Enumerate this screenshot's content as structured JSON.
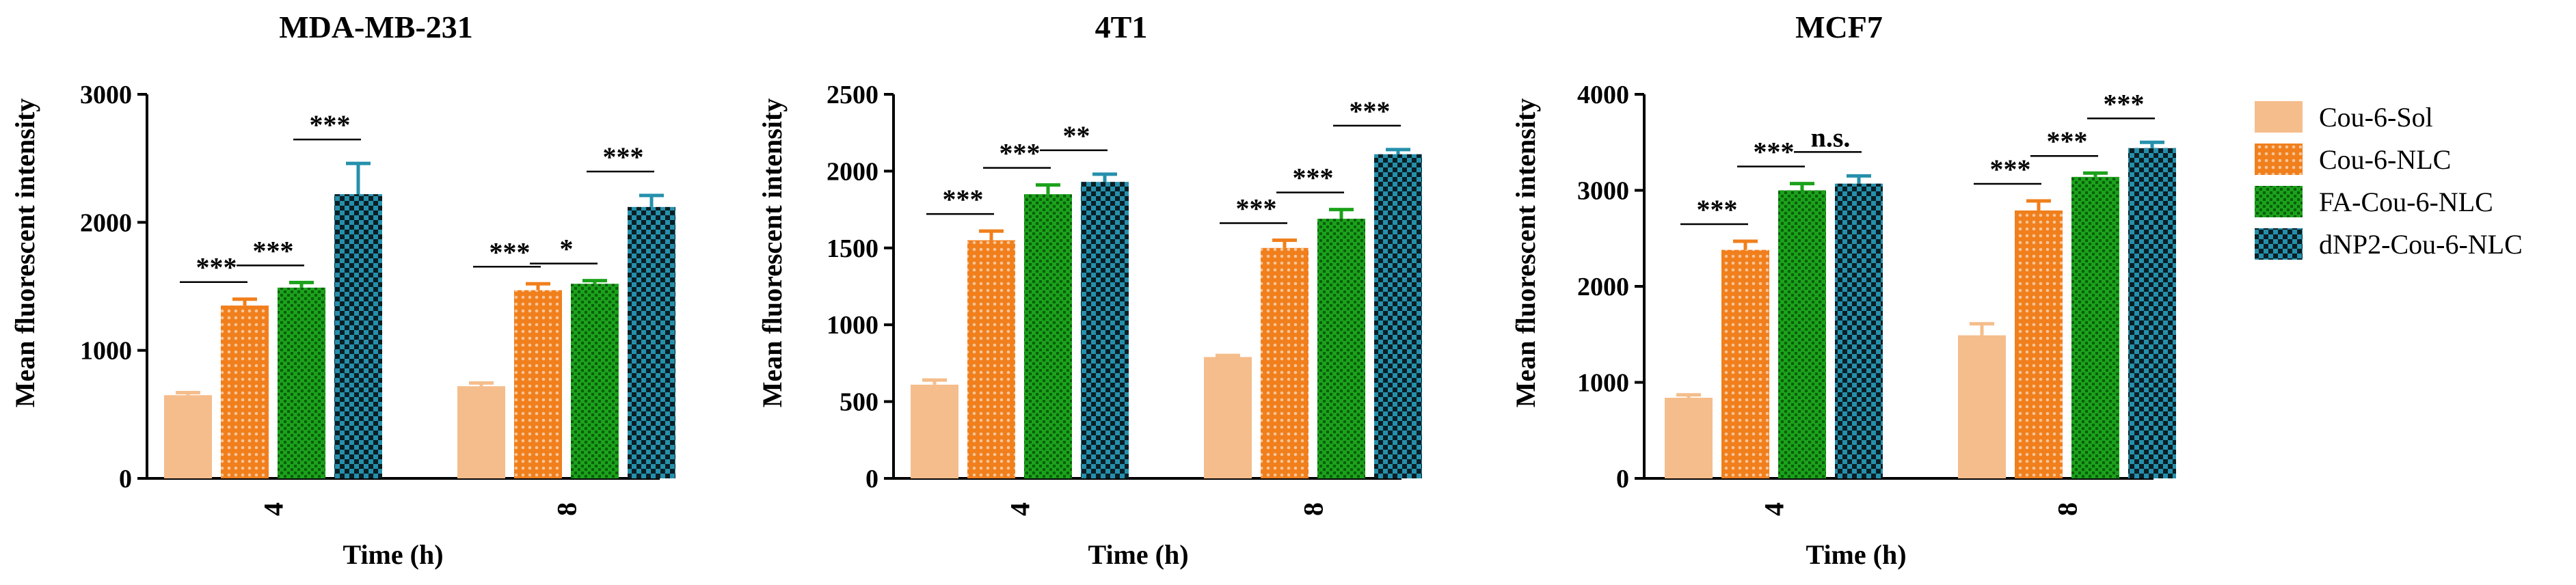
{
  "chart_data": [
    {
      "type": "bar",
      "title": "MDA-MB-231",
      "xlabel": "Time (h)",
      "ylabel": "Mean fluorescent intensity",
      "ylim": [
        0,
        3000
      ],
      "yticks": [
        0,
        1000,
        2000,
        3000
      ],
      "categories": [
        "4",
        "8"
      ],
      "series": [
        {
          "name": "Cou-6-Sol",
          "values": [
            650,
            720
          ],
          "errors": [
            20,
            25
          ]
        },
        {
          "name": "Cou-6-NLC",
          "values": [
            1350,
            1470
          ],
          "errors": [
            50,
            50
          ]
        },
        {
          "name": "FA-Cou-6-NLC",
          "values": [
            1490,
            1520
          ],
          "errors": [
            40,
            25
          ]
        },
        {
          "name": "dNP2-Cou-6-NLC",
          "values": [
            2220,
            2120
          ],
          "errors": [
            240,
            90
          ]
        }
      ],
      "significance": [
        {
          "category": "4",
          "pair": [
            0,
            1
          ],
          "label": "***"
        },
        {
          "category": "4",
          "pair": [
            1,
            2
          ],
          "label": "***"
        },
        {
          "category": "4",
          "pair": [
            2,
            3
          ],
          "label": "***"
        },
        {
          "category": "8",
          "pair": [
            0,
            1
          ],
          "label": "***"
        },
        {
          "category": "8",
          "pair": [
            1,
            2
          ],
          "label": "*"
        },
        {
          "category": "8",
          "pair": [
            2,
            3
          ],
          "label": "***"
        }
      ]
    },
    {
      "type": "bar",
      "title": "4T1",
      "xlabel": "Time (h)",
      "ylabel": "Mean fluorescent intensity",
      "ylim": [
        0,
        2500
      ],
      "yticks": [
        0,
        500,
        1000,
        1500,
        2000,
        2500
      ],
      "categories": [
        "4",
        "8"
      ],
      "series": [
        {
          "name": "Cou-6-Sol",
          "values": [
            610,
            790
          ],
          "errors": [
            30,
            10
          ]
        },
        {
          "name": "Cou-6-NLC",
          "values": [
            1550,
            1500
          ],
          "errors": [
            60,
            50
          ]
        },
        {
          "name": "FA-Cou-6-NLC",
          "values": [
            1850,
            1690
          ],
          "errors": [
            60,
            60
          ]
        },
        {
          "name": "dNP2-Cou-6-NLC",
          "values": [
            1930,
            2110
          ],
          "errors": [
            50,
            30
          ]
        }
      ],
      "significance": [
        {
          "category": "4",
          "pair": [
            0,
            1
          ],
          "label": "***"
        },
        {
          "category": "4",
          "pair": [
            1,
            2
          ],
          "label": "***"
        },
        {
          "category": "4",
          "pair": [
            2,
            3
          ],
          "label": "**"
        },
        {
          "category": "8",
          "pair": [
            0,
            1
          ],
          "label": "***"
        },
        {
          "category": "8",
          "pair": [
            1,
            2
          ],
          "label": "***"
        },
        {
          "category": "8",
          "pair": [
            2,
            3
          ],
          "label": "***"
        }
      ]
    },
    {
      "type": "bar",
      "title": "MCF7",
      "xlabel": "Time (h)",
      "ylabel": "Mean fluorescent intensity",
      "ylim": [
        0,
        4000
      ],
      "yticks": [
        0,
        1000,
        2000,
        3000,
        4000
      ],
      "categories": [
        "4",
        "8"
      ],
      "series": [
        {
          "name": "Cou-6-Sol",
          "values": [
            840,
            1490
          ],
          "errors": [
            30,
            120
          ]
        },
        {
          "name": "Cou-6-NLC",
          "values": [
            2380,
            2790
          ],
          "errors": [
            90,
            100
          ]
        },
        {
          "name": "FA-Cou-6-NLC",
          "values": [
            3000,
            3140
          ],
          "errors": [
            70,
            40
          ]
        },
        {
          "name": "dNP2-Cou-6-NLC",
          "values": [
            3070,
            3440
          ],
          "errors": [
            80,
            60
          ]
        }
      ],
      "significance": [
        {
          "category": "4",
          "pair": [
            0,
            1
          ],
          "label": "***"
        },
        {
          "category": "4",
          "pair": [
            1,
            2
          ],
          "label": "***"
        },
        {
          "category": "4",
          "pair": [
            2,
            3
          ],
          "label": "n.s."
        },
        {
          "category": "8",
          "pair": [
            0,
            1
          ],
          "label": "***"
        },
        {
          "category": "8",
          "pair": [
            1,
            2
          ],
          "label": "***"
        },
        {
          "category": "8",
          "pair": [
            2,
            3
          ],
          "label": "***"
        }
      ]
    }
  ],
  "legend": {
    "placement": "right",
    "items": [
      {
        "label": "Cou-6-Sol",
        "color": "#F5BD8B",
        "pattern": "solid"
      },
      {
        "label": "Cou-6-NLC",
        "color": "#F07F1C",
        "pattern": "dots"
      },
      {
        "label": "FA-Cou-6-NLC",
        "color": "#1BA21B",
        "pattern": "grid"
      },
      {
        "label": "dNP2-Cou-6-NLC",
        "color": "#2590AC",
        "pattern": "checker"
      }
    ]
  }
}
